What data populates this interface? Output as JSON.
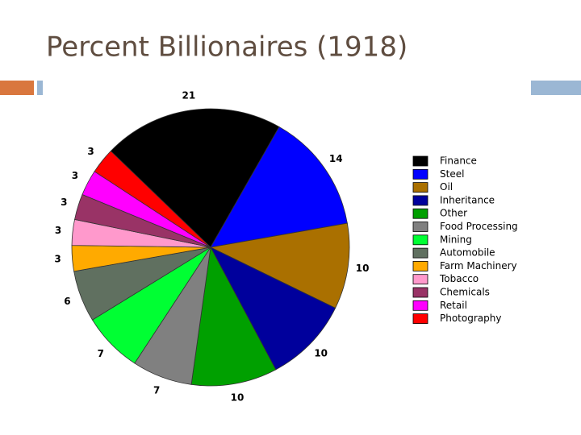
{
  "chart_data": {
    "type": "pie",
    "title": "Percent Billionaires (1918)",
    "categories": [
      "Finance",
      "Steel",
      "Oil",
      "Inheritance",
      "Other",
      "Food Processing",
      "Mining",
      "Automobile",
      "Farm Machinery",
      "Tobacco",
      "Chemicals",
      "Retail",
      "Photography"
    ],
    "values": [
      21,
      14,
      10,
      10,
      10,
      7,
      7,
      6,
      3,
      3,
      3,
      3,
      3
    ],
    "colors": [
      "#000000",
      "#0000ff",
      "#aa7000",
      "#00009c",
      "#00a000",
      "#808080",
      "#00ff33",
      "#607060",
      "#ffaa00",
      "#ff99cc",
      "#993366",
      "#ff00ff",
      "#ff0000"
    ],
    "legend": "right"
  }
}
